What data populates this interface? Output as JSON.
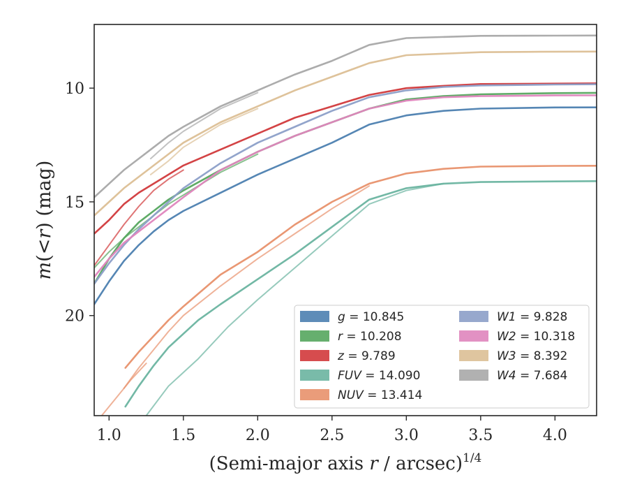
{
  "chart_data": {
    "type": "line",
    "xlabel": "(Semi-major axis r / arcsec)",
    "xlabel_parts": {
      "pre": "(Semi-major axis ",
      "var": "r",
      "post": " / arcsec)",
      "sup": "1/4"
    },
    "ylabel_parts": {
      "var1": "m",
      "mid": "(<",
      "var2": "r",
      "post": ") (mag)"
    },
    "xlim": [
      0.9,
      4.28
    ],
    "ylim": [
      24.4,
      7.2
    ],
    "y_inverted": true,
    "xticks": [
      1.0,
      1.5,
      2.0,
      2.5,
      3.0,
      3.5,
      4.0
    ],
    "xtick_labels": [
      "1.0",
      "1.5",
      "2.0",
      "2.5",
      "3.0",
      "3.5",
      "4.0"
    ],
    "yticks": [
      10,
      15,
      20
    ],
    "ytick_labels": [
      "10",
      "15",
      "20"
    ],
    "grid": false,
    "legend_position": "lower-right",
    "series": [
      {
        "name": "g",
        "label_value": "10.845",
        "color": "#4c7fb0",
        "curves": [
          [
            [
              0.9,
              19.5
            ],
            [
              1.0,
              18.5
            ],
            [
              1.1,
              17.6
            ],
            [
              1.2,
              16.9
            ],
            [
              1.3,
              16.3
            ],
            [
              1.4,
              15.8
            ],
            [
              1.5,
              15.4
            ],
            [
              1.75,
              14.6
            ],
            [
              2.0,
              13.8
            ],
            [
              2.25,
              13.1
            ],
            [
              2.5,
              12.4
            ],
            [
              2.75,
              11.6
            ],
            [
              3.0,
              11.2
            ],
            [
              3.25,
              11.0
            ],
            [
              3.5,
              10.9
            ],
            [
              4.0,
              10.85
            ],
            [
              4.28,
              10.845
            ]
          ]
        ]
      },
      {
        "name": "r",
        "label_value": "10.208",
        "color": "#55a65e",
        "curves": [
          [
            [
              0.9,
              18.6
            ],
            [
              1.0,
              17.5
            ],
            [
              1.1,
              16.6
            ],
            [
              1.2,
              15.9
            ],
            [
              1.3,
              15.4
            ],
            [
              1.4,
              14.9
            ],
            [
              1.5,
              14.5
            ],
            [
              1.75,
              13.6
            ],
            [
              2.0,
              12.8
            ],
            [
              2.25,
              12.1
            ],
            [
              2.5,
              11.5
            ],
            [
              2.75,
              10.9
            ],
            [
              3.0,
              10.5
            ],
            [
              3.25,
              10.35
            ],
            [
              3.5,
              10.27
            ],
            [
              4.0,
              10.22
            ],
            [
              4.28,
              10.208
            ]
          ],
          [
            [
              0.9,
              17.9
            ],
            [
              1.0,
              17.2
            ],
            [
              1.1,
              16.6
            ],
            [
              1.2,
              16.1
            ],
            [
              1.3,
              15.6
            ],
            [
              1.4,
              15.1
            ],
            [
              1.5,
              14.7
            ],
            [
              1.75,
              13.7
            ],
            [
              2.0,
              12.9
            ]
          ]
        ]
      },
      {
        "name": "z",
        "label_value": "9.789",
        "color": "#d1393b",
        "curves": [
          [
            [
              0.9,
              16.4
            ],
            [
              1.0,
              15.8
            ],
            [
              1.1,
              15.1
            ],
            [
              1.2,
              14.6
            ],
            [
              1.3,
              14.2
            ],
            [
              1.4,
              13.8
            ],
            [
              1.5,
              13.4
            ],
            [
              1.75,
              12.7
            ],
            [
              2.0,
              12.0
            ],
            [
              2.25,
              11.3
            ],
            [
              2.5,
              10.8
            ],
            [
              2.75,
              10.3
            ],
            [
              3.0,
              10.0
            ],
            [
              3.25,
              9.9
            ],
            [
              3.5,
              9.82
            ],
            [
              4.0,
              9.8
            ],
            [
              4.28,
              9.789
            ]
          ],
          [
            [
              0.9,
              17.8
            ],
            [
              1.0,
              16.9
            ],
            [
              1.1,
              16.0
            ],
            [
              1.2,
              15.2
            ],
            [
              1.3,
              14.5
            ],
            [
              1.4,
              14.0
            ],
            [
              1.5,
              13.6
            ]
          ]
        ]
      },
      {
        "name": "FUV",
        "label_value": "14.090",
        "color": "#6ab4a0",
        "curves": [
          [
            [
              1.11,
              24.0
            ],
            [
              1.2,
              23.1
            ],
            [
              1.3,
              22.2
            ],
            [
              1.4,
              21.4
            ],
            [
              1.5,
              20.8
            ],
            [
              1.6,
              20.2
            ],
            [
              1.75,
              19.5
            ],
            [
              2.0,
              18.4
            ],
            [
              2.25,
              17.3
            ],
            [
              2.5,
              16.1
            ],
            [
              2.75,
              14.9
            ],
            [
              3.0,
              14.4
            ],
            [
              3.25,
              14.2
            ],
            [
              3.5,
              14.13
            ],
            [
              4.0,
              14.1
            ],
            [
              4.28,
              14.09
            ]
          ],
          [
            [
              1.25,
              24.4
            ],
            [
              1.4,
              23.1
            ],
            [
              1.6,
              21.9
            ],
            [
              1.8,
              20.5
            ],
            [
              2.0,
              19.3
            ],
            [
              2.25,
              17.9
            ],
            [
              2.5,
              16.5
            ],
            [
              2.75,
              15.1
            ],
            [
              3.0,
              14.5
            ],
            [
              3.25,
              14.2
            ]
          ]
        ]
      },
      {
        "name": "NUV",
        "label_value": "13.414",
        "color": "#e8916c",
        "curves": [
          [
            [
              1.11,
              22.3
            ],
            [
              1.2,
              21.6
            ],
            [
              1.3,
              20.9
            ],
            [
              1.4,
              20.2
            ],
            [
              1.5,
              19.6
            ],
            [
              1.75,
              18.2
            ],
            [
              2.0,
              17.2
            ],
            [
              2.25,
              16.0
            ],
            [
              2.5,
              15.0
            ],
            [
              2.75,
              14.2
            ],
            [
              3.0,
              13.75
            ],
            [
              3.25,
              13.55
            ],
            [
              3.5,
              13.45
            ],
            [
              4.0,
              13.42
            ],
            [
              4.28,
              13.414
            ]
          ],
          [
            [
              1.1,
              23.2
            ],
            [
              1.2,
              22.3
            ],
            [
              1.3,
              21.5
            ],
            [
              1.4,
              20.7
            ],
            [
              1.5,
              20.0
            ],
            [
              1.75,
              18.7
            ],
            [
              2.0,
              17.5
            ],
            [
              2.25,
              16.4
            ],
            [
              2.5,
              15.3
            ],
            [
              2.75,
              14.3
            ]
          ],
          [
            [
              0.95,
              24.4
            ],
            [
              1.05,
              23.6
            ],
            [
              1.15,
              22.8
            ],
            [
              1.25,
              22.1
            ]
          ]
        ]
      },
      {
        "name": "W1",
        "label_value": "9.828",
        "color": "#8c9fc8",
        "curves": [
          [
            [
              0.9,
              18.6
            ],
            [
              1.0,
              17.7
            ],
            [
              1.1,
              16.9
            ],
            [
              1.2,
              16.2
            ],
            [
              1.3,
              15.6
            ],
            [
              1.4,
              15.0
            ],
            [
              1.5,
              14.4
            ],
            [
              1.75,
              13.3
            ],
            [
              2.0,
              12.4
            ],
            [
              2.25,
              11.7
            ],
            [
              2.5,
              11.0
            ],
            [
              2.75,
              10.4
            ],
            [
              3.0,
              10.1
            ],
            [
              3.25,
              9.95
            ],
            [
              3.5,
              9.88
            ],
            [
              4.0,
              9.84
            ],
            [
              4.28,
              9.828
            ]
          ]
        ]
      },
      {
        "name": "W2",
        "label_value": "10.318",
        "color": "#df85bd",
        "curves": [
          [
            [
              0.9,
              18.3
            ],
            [
              1.0,
              17.5
            ],
            [
              1.1,
              16.8
            ],
            [
              1.2,
              16.3
            ],
            [
              1.3,
              15.8
            ],
            [
              1.4,
              15.3
            ],
            [
              1.5,
              14.8
            ],
            [
              1.75,
              13.6
            ],
            [
              2.0,
              12.8
            ],
            [
              2.25,
              12.1
            ],
            [
              2.5,
              11.5
            ],
            [
              2.75,
              10.9
            ],
            [
              3.0,
              10.55
            ],
            [
              3.25,
              10.4
            ],
            [
              3.5,
              10.35
            ],
            [
              4.0,
              10.32
            ],
            [
              4.28,
              10.318
            ]
          ]
        ]
      },
      {
        "name": "W3",
        "label_value": "8.392",
        "color": "#dcbf95",
        "curves": [
          [
            [
              0.9,
              15.6
            ],
            [
              1.0,
              15.0
            ],
            [
              1.1,
              14.4
            ],
            [
              1.2,
              13.9
            ],
            [
              1.3,
              13.4
            ],
            [
              1.4,
              12.9
            ],
            [
              1.5,
              12.4
            ],
            [
              1.75,
              11.5
            ],
            [
              2.0,
              10.8
            ],
            [
              2.25,
              10.1
            ],
            [
              2.5,
              9.5
            ],
            [
              2.75,
              8.9
            ],
            [
              3.0,
              8.55
            ],
            [
              3.5,
              8.42
            ],
            [
              3.9,
              8.4
            ],
            [
              4.28,
              8.392
            ]
          ],
          [
            [
              1.28,
              13.8
            ],
            [
              1.4,
              13.2
            ],
            [
              1.5,
              12.6
            ],
            [
              1.75,
              11.6
            ],
            [
              2.0,
              10.9
            ]
          ]
        ]
      },
      {
        "name": "W4",
        "label_value": "7.684",
        "color": "#a8a8a8",
        "curves": [
          [
            [
              0.9,
              14.8
            ],
            [
              1.0,
              14.2
            ],
            [
              1.1,
              13.6
            ],
            [
              1.2,
              13.1
            ],
            [
              1.3,
              12.6
            ],
            [
              1.4,
              12.1
            ],
            [
              1.5,
              11.7
            ],
            [
              1.75,
              10.8
            ],
            [
              2.0,
              10.1
            ],
            [
              2.25,
              9.4
            ],
            [
              2.5,
              8.8
            ],
            [
              2.75,
              8.1
            ],
            [
              3.0,
              7.8
            ],
            [
              3.5,
              7.7
            ],
            [
              4.0,
              7.69
            ],
            [
              4.28,
              7.684
            ]
          ],
          [
            [
              1.28,
              13.1
            ],
            [
              1.4,
              12.4
            ],
            [
              1.5,
              11.9
            ],
            [
              1.6,
              11.5
            ],
            [
              1.75,
              10.9
            ],
            [
              2.0,
              10.2
            ]
          ]
        ]
      }
    ]
  }
}
